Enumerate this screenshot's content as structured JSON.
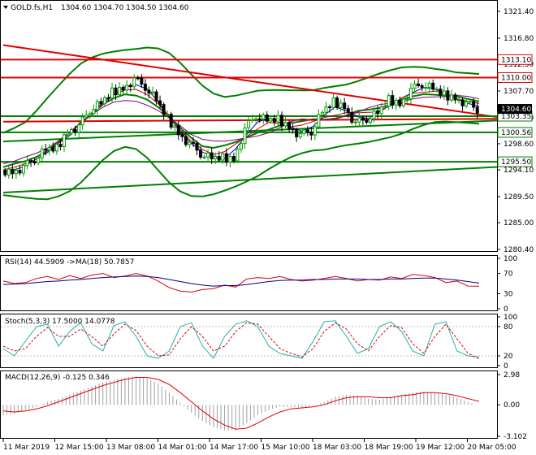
{
  "header": {
    "symbol_tf": "GOLD.fs,H1",
    "ohlc": "1304.60 1304.70 1304.50 1304.60"
  },
  "colors": {
    "bull_candle": "#00a000",
    "bear_candle": "#000000",
    "bollinger": "#008000",
    "trendline": "#e00000",
    "level_red": "#e00000",
    "level_green": "#008000",
    "ma_blue": "#0000cc",
    "ma_red": "#cc0000",
    "ma_purple": "#800080",
    "rsi": "#e00000",
    "rsi_ma": "#00008b",
    "stoch_main": "#20b2aa",
    "stoch_signal": "#e00000",
    "macd_hist": "#a0a0a0",
    "macd_signal": "#e00000"
  },
  "price_axis": {
    "ticks": [
      "1321.40",
      "1316.80",
      "1312.30",
      "1307.70",
      "1303.10",
      "1298.60",
      "1294.10",
      "1289.50",
      "1285.00",
      "1280.40"
    ],
    "current_price": "1304.60"
  },
  "levels": [
    {
      "label": "1313.10",
      "price": 1313.1,
      "color": "red"
    },
    {
      "label": "1310.00",
      "price": 1310.0,
      "color": "red"
    },
    {
      "label": "1303.35",
      "price": 1303.35,
      "color": "green"
    },
    {
      "label": "1300.56",
      "price": 1300.56,
      "color": "green"
    },
    {
      "label": "1295.50",
      "price": 1295.5,
      "color": "green"
    }
  ],
  "time_axis": [
    "11 Mar 2019",
    "12 Mar 15:00",
    "13 Mar 08:00",
    "14 Mar 01:00",
    "14 Mar 17:00",
    "15 Mar 10:00",
    "18 Mar 03:00",
    "18 Mar 19:00",
    "19 Mar 12:00",
    "20 Mar 05:00"
  ],
  "rsi": {
    "title": "RSI(14) 44.5909 ->MA(18) 50.7857",
    "ticks": [
      "100",
      "70",
      "30",
      "0"
    ]
  },
  "stoch": {
    "title": "Stoch(5,3,3) 17.5000 14.0778",
    "ticks": [
      "100",
      "80",
      "20",
      "0"
    ]
  },
  "macd": {
    "title": "MACD(12,26,9) -0.125 0.346",
    "ticks": [
      "2.98",
      "0.00",
      "-3.102"
    ]
  },
  "chart_data": [
    {
      "type": "candlestick",
      "title": "GOLD.fs,H1",
      "ylim": [
        1280.4,
        1321.4
      ],
      "x": [
        "11 Mar 2019",
        "12 Mar 15:00",
        "13 Mar 08:00",
        "14 Mar 01:00",
        "14 Mar 17:00",
        "15 Mar 10:00",
        "18 Mar 03:00",
        "18 Mar 19:00",
        "19 Mar 12:00",
        "20 Mar 05:00"
      ],
      "close_path": [
        1294.0,
        1293.8,
        1294.5,
        1296.0,
        1297.5,
        1297.8,
        1300.8,
        1301.5,
        1304.5,
        1305.5,
        1307.5,
        1308.2,
        1309.6,
        1308.5,
        1306.0,
        1303.0,
        1300.5,
        1298.5,
        1297.0,
        1296.0,
        1296.2,
        1296.0,
        1301.0,
        1303.6,
        1302.5,
        1302.8,
        1301.5,
        1300.0,
        1300.8,
        1304.0,
        1305.8,
        1305.0,
        1302.0,
        1303.0,
        1303.8,
        1306.2,
        1305.5,
        1307.8,
        1309.0,
        1308.0,
        1307.0,
        1306.5,
        1305.5,
        1304.6
      ],
      "series": [
        {
          "name": "Close"
        }
      ]
    },
    {
      "type": "line",
      "title": "RSI(14) 44.5909 ->MA(18) 50.7857",
      "ylim": [
        0,
        100
      ],
      "series": [
        {
          "name": "RSI",
          "values": [
            55,
            50,
            52,
            60,
            64,
            58,
            66,
            60,
            67,
            70,
            62,
            65,
            70,
            65,
            55,
            42,
            35,
            33,
            38,
            40,
            47,
            43,
            59,
            62,
            60,
            64,
            58,
            55,
            57,
            60,
            64,
            60,
            55,
            58,
            57,
            63,
            60,
            68,
            66,
            62,
            52,
            55,
            45,
            44.6
          ]
        },
        {
          "name": "MA",
          "values": [
            48,
            49,
            50,
            52,
            54,
            55,
            57,
            58,
            60,
            62,
            63,
            64,
            65,
            64,
            62,
            58,
            54,
            50,
            47,
            45,
            46,
            46,
            48,
            51,
            54,
            56,
            57,
            57,
            58,
            58,
            59,
            59,
            59,
            58,
            58,
            59,
            59,
            60,
            61,
            61,
            59,
            57,
            54,
            50.8
          ]
        }
      ]
    },
    {
      "type": "line",
      "title": "Stoch(5,3,3) 17.5000 14.0778",
      "ylim": [
        0,
        100
      ],
      "series": [
        {
          "name": "Main",
          "values": [
            35,
            20,
            50,
            80,
            85,
            40,
            70,
            88,
            45,
            30,
            82,
            90,
            60,
            20,
            15,
            30,
            80,
            88,
            40,
            15,
            60,
            85,
            92,
            80,
            40,
            25,
            20,
            15,
            50,
            90,
            92,
            60,
            25,
            35,
            80,
            90,
            70,
            30,
            20,
            85,
            90,
            30,
            20,
            17.5
          ]
        },
        {
          "name": "Signal",
          "values": [
            40,
            30,
            35,
            60,
            78,
            60,
            60,
            75,
            60,
            40,
            65,
            85,
            72,
            40,
            20,
            22,
            55,
            80,
            60,
            30,
            40,
            70,
            88,
            85,
            60,
            35,
            25,
            18,
            35,
            70,
            88,
            75,
            45,
            30,
            60,
            82,
            78,
            45,
            25,
            60,
            85,
            55,
            25,
            14.1
          ]
        }
      ]
    },
    {
      "type": "bar",
      "title": "MACD(12,26,9) -0.125 0.346",
      "ylim": [
        -3.102,
        2.98
      ],
      "series": [
        {
          "name": "Histogram",
          "values": [
            -1.0,
            -0.9,
            -0.5,
            -0.2,
            0.3,
            0.6,
            1.0,
            1.4,
            1.8,
            2.2,
            2.5,
            2.7,
            2.8,
            2.6,
            2.1,
            1.2,
            0.2,
            -0.8,
            -1.6,
            -2.2,
            -2.5,
            -2.5,
            -1.8,
            -1.0,
            -0.5,
            -0.2,
            -0.2,
            -0.3,
            -0.1,
            0.3,
            0.8,
            1.0,
            0.9,
            0.6,
            0.5,
            0.8,
            1.0,
            1.2,
            1.3,
            1.2,
            1.0,
            0.7,
            0.3,
            -0.125
          ]
        },
        {
          "name": "Signal",
          "values": [
            -0.6,
            -0.7,
            -0.6,
            -0.4,
            -0.1,
            0.3,
            0.7,
            1.1,
            1.5,
            1.9,
            2.2,
            2.5,
            2.7,
            2.7,
            2.5,
            2.0,
            1.2,
            0.3,
            -0.6,
            -1.4,
            -2.0,
            -2.4,
            -2.3,
            -1.8,
            -1.2,
            -0.7,
            -0.4,
            -0.3,
            -0.2,
            0.0,
            0.4,
            0.7,
            0.8,
            0.8,
            0.7,
            0.7,
            0.9,
            1.0,
            1.2,
            1.2,
            1.1,
            0.9,
            0.6,
            0.346
          ]
        }
      ]
    }
  ]
}
